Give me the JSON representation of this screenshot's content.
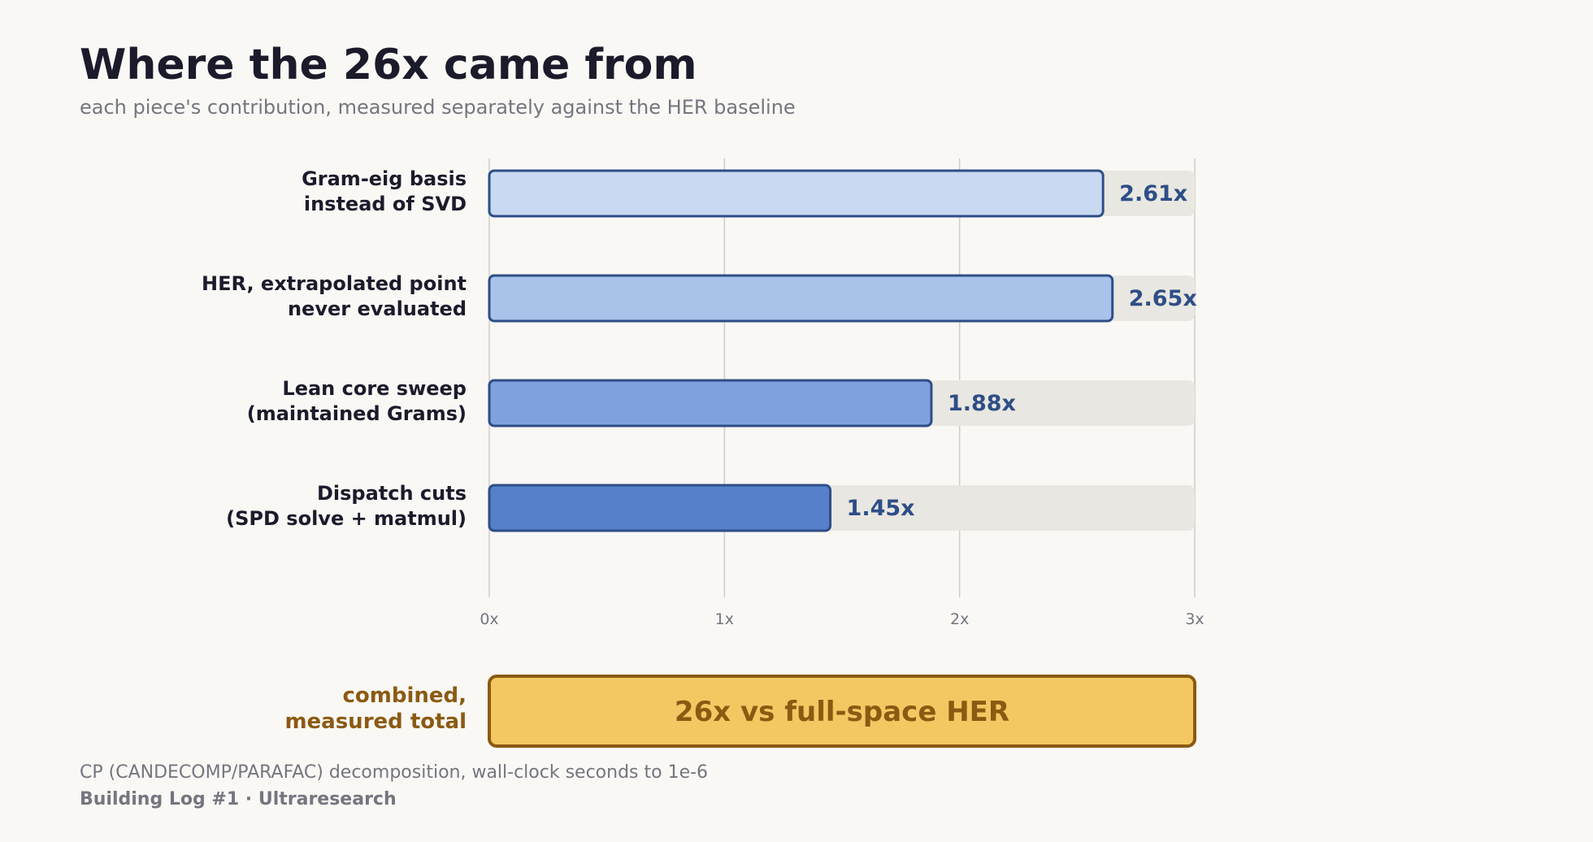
{
  "header": {
    "title": "Where the 26x came from",
    "subtitle": "each piece's contribution, measured separately against the HER baseline"
  },
  "chart_data": {
    "type": "bar",
    "orientation": "horizontal",
    "categories": [
      [
        "Gram-eig basis",
        "instead of SVD"
      ],
      [
        "HER, extrapolated point",
        "never evaluated"
      ],
      [
        "Lean core sweep",
        "(maintained Grams)"
      ],
      [
        "Dispatch cuts",
        "(SPD solve + matmul)"
      ]
    ],
    "values": [
      2.61,
      2.65,
      1.88,
      1.45
    ],
    "value_labels": [
      "2.61x",
      "2.65x",
      "1.88x",
      "1.45x"
    ],
    "bar_colors": [
      "#c8d9f1",
      "#a8c2ea",
      "#7fa2df",
      "#5680ca"
    ],
    "xlim": [
      0,
      3
    ],
    "xticks": [
      0,
      1,
      2,
      3
    ],
    "xtick_labels": [
      "0x",
      "1x",
      "2x",
      "3x"
    ],
    "grid": true,
    "combined": {
      "label": [
        "combined,",
        "measured total"
      ],
      "value_label": "26x vs full-space HER"
    }
  },
  "colors": {
    "bar_outline": "#2e4e87",
    "value_text": "#2e4e87",
    "track": "#e9e7e1",
    "grid": "#cfcdcb",
    "combined_fill": "#f3c862",
    "combined_outline": "#8b5a12",
    "combined_text": "#8b5a12"
  },
  "footer": {
    "note": "CP (CANDECOMP/PARAFAC) decomposition, wall-clock seconds to 1e-6",
    "credit": "Building Log #1 · Ultraresearch"
  }
}
